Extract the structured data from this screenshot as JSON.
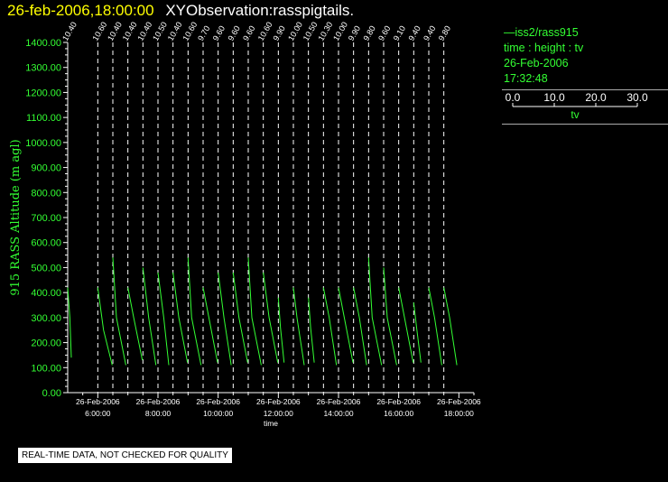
{
  "header": {
    "date_time": "26-feb-2006,18:00:00",
    "observation": "XYObservation:rasspigtails."
  },
  "legend": {
    "series_label": "iss2/rass915",
    "axes_label": "time : height : tv",
    "date": "26-Feb-2006",
    "time": "17:32:48",
    "scale_ticks": [
      "0.0",
      "10.0",
      "20.0",
      "30.0"
    ],
    "scale_label": "tv"
  },
  "footer": {
    "warning": "REAL-TIME DATA, NOT CHECKED FOR QUALITY"
  },
  "colors": {
    "background": "#000000",
    "axis": "#ffffff",
    "data": "#33ff33",
    "title_date": "#ffff00"
  },
  "chart_data": {
    "type": "line",
    "ylabel": "915 RASS Altitude (m agl)",
    "xlabel": "time",
    "ylim": [
      0,
      1400
    ],
    "yticks": [
      "0.00",
      "100.00",
      "200.00",
      "300.00",
      "400.00",
      "500.00",
      "600.00",
      "700.00",
      "800.00",
      "900.00",
      "1000.00",
      "1100.00",
      "1200.00",
      "1300.00",
      "1400.00"
    ],
    "xlim": [
      "26-Feb-2006 5:00",
      "26-Feb-2006 18:30"
    ],
    "xticks": [
      {
        "date": "26-Feb-2006",
        "time": "6:00:00",
        "hour": 6
      },
      {
        "date": "26-Feb-2006",
        "time": "8:00:00",
        "hour": 8
      },
      {
        "date": "26-Feb-2006",
        "time": "10:00:00",
        "hour": 10
      },
      {
        "date": "26-Feb-2006",
        "time": "12:00:00",
        "hour": 12
      },
      {
        "date": "26-Feb-2006",
        "time": "14:00:00",
        "hour": 14
      },
      {
        "date": "26-Feb-2006",
        "time": "16:00:00",
        "hour": 16
      },
      {
        "date": "26-Feb-2006",
        "time": "18:00:00",
        "hour": 18
      }
    ],
    "profiles": [
      {
        "hour": 5.0,
        "label": "10.40",
        "points": [
          [
            0.5,
            140
          ],
          [
            0.3,
            300
          ],
          [
            0.0,
            420
          ]
        ]
      },
      {
        "hour": 6.0,
        "label": "10.60",
        "points": [
          [
            2.0,
            110
          ],
          [
            0.8,
            250
          ],
          [
            0.0,
            420
          ]
        ]
      },
      {
        "hour": 6.5,
        "label": "10.40",
        "points": [
          [
            1.8,
            110
          ],
          [
            0.5,
            300
          ],
          [
            0.0,
            540
          ]
        ]
      },
      {
        "hour": 7.0,
        "label": "10.40",
        "points": [
          [
            2.0,
            130
          ],
          [
            0.8,
            300
          ],
          [
            0.0,
            420
          ]
        ]
      },
      {
        "hour": 7.5,
        "label": "10.40",
        "points": [
          [
            1.8,
            110
          ],
          [
            0.8,
            300
          ],
          [
            0.0,
            500
          ]
        ]
      },
      {
        "hour": 8.0,
        "label": "10.50",
        "points": [
          [
            1.5,
            110
          ],
          [
            0.8,
            300
          ],
          [
            0.0,
            480
          ]
        ]
      },
      {
        "hour": 8.5,
        "label": "10.40",
        "points": [
          [
            2.0,
            120
          ],
          [
            0.8,
            300
          ],
          [
            0.0,
            480
          ]
        ]
      },
      {
        "hour": 9.0,
        "label": "10.60",
        "points": [
          [
            1.8,
            110
          ],
          [
            0.5,
            300
          ],
          [
            0.0,
            540
          ]
        ]
      },
      {
        "hour": 9.5,
        "label": "9.70",
        "points": [
          [
            2.0,
            120
          ],
          [
            0.8,
            300
          ],
          [
            0.0,
            420
          ]
        ]
      },
      {
        "hour": 10.0,
        "label": "9.60",
        "points": [
          [
            1.8,
            110
          ],
          [
            0.8,
            300
          ],
          [
            0.0,
            480
          ]
        ]
      },
      {
        "hour": 10.5,
        "label": "9.60",
        "points": [
          [
            2.0,
            120
          ],
          [
            0.8,
            300
          ],
          [
            0.0,
            480
          ]
        ]
      },
      {
        "hour": 11.0,
        "label": "9.60",
        "points": [
          [
            1.8,
            110
          ],
          [
            0.5,
            300
          ],
          [
            0.0,
            540
          ]
        ]
      },
      {
        "hour": 11.5,
        "label": "10.60",
        "points": [
          [
            2.0,
            120
          ],
          [
            0.8,
            300
          ],
          [
            0.0,
            480
          ]
        ]
      },
      {
        "hour": 12.0,
        "label": "9.90",
        "points": [
          [
            0.8,
            120
          ],
          [
            0.3,
            260
          ],
          [
            0.0,
            380
          ]
        ]
      },
      {
        "hour": 12.5,
        "label": "10.00",
        "points": [
          [
            1.5,
            110
          ],
          [
            0.5,
            300
          ],
          [
            0.0,
            420
          ]
        ]
      },
      {
        "hour": 13.0,
        "label": "10.50",
        "points": [
          [
            0.8,
            120
          ],
          [
            0.3,
            260
          ],
          [
            0.0,
            380
          ]
        ]
      },
      {
        "hour": 13.5,
        "label": "10.30",
        "points": [
          [
            1.8,
            110
          ],
          [
            0.8,
            300
          ],
          [
            0.0,
            420
          ]
        ]
      },
      {
        "hour": 14.0,
        "label": "10.00",
        "points": [
          [
            2.0,
            120
          ],
          [
            0.8,
            300
          ],
          [
            0.0,
            420
          ]
        ]
      },
      {
        "hour": 14.5,
        "label": "9.90",
        "points": [
          [
            1.8,
            110
          ],
          [
            0.8,
            300
          ],
          [
            0.0,
            420
          ]
        ]
      },
      {
        "hour": 15.0,
        "label": "9.80",
        "points": [
          [
            1.8,
            110
          ],
          [
            0.5,
            300
          ],
          [
            0.0,
            540
          ]
        ]
      },
      {
        "hour": 15.5,
        "label": "9.60",
        "points": [
          [
            1.8,
            110
          ],
          [
            0.5,
            300
          ],
          [
            0.0,
            500
          ]
        ]
      },
      {
        "hour": 16.0,
        "label": "9.10",
        "points": [
          [
            2.0,
            120
          ],
          [
            0.8,
            300
          ],
          [
            0.0,
            420
          ]
        ]
      },
      {
        "hour": 16.5,
        "label": "9.40",
        "points": [
          [
            1.0,
            120
          ],
          [
            0.4,
            260
          ],
          [
            0.0,
            360
          ]
        ]
      },
      {
        "hour": 17.0,
        "label": "9.40",
        "points": [
          [
            1.8,
            110
          ],
          [
            0.8,
            300
          ],
          [
            0.0,
            420
          ]
        ]
      },
      {
        "hour": 17.5,
        "label": "9.80",
        "points": [
          [
            1.8,
            110
          ],
          [
            0.8,
            300
          ],
          [
            0.0,
            420
          ]
        ]
      }
    ]
  }
}
